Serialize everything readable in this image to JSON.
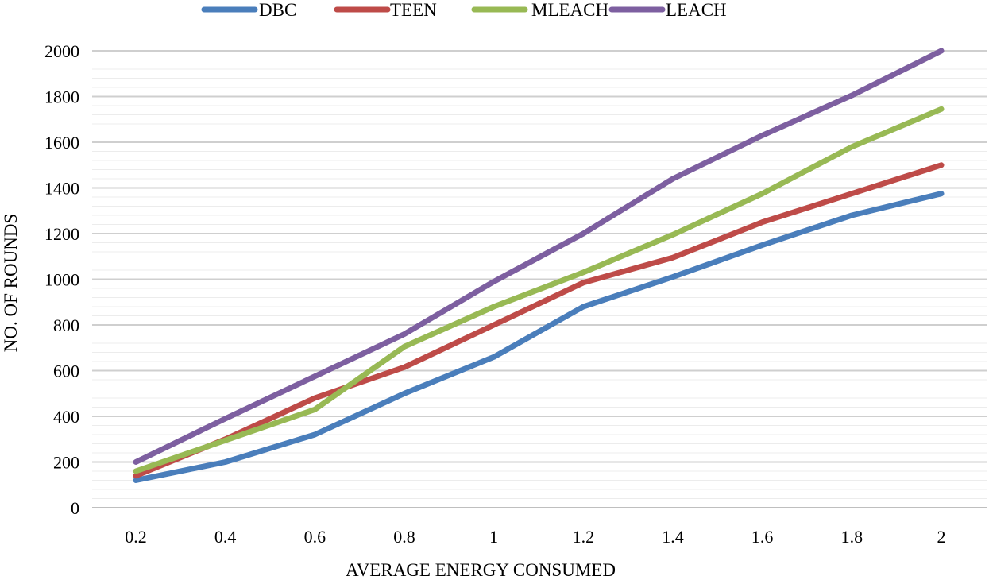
{
  "chart_data": {
    "type": "line",
    "title": "",
    "xlabel": "AVERAGE ENERGY CONSUMED",
    "ylabel": "NO. OF ROUNDS",
    "categories": [
      "0.2",
      "0.4",
      "0.6",
      "0.8",
      "1",
      "1.2",
      "1.4",
      "1.6",
      "1.8",
      "2"
    ],
    "ylim": [
      0,
      2000
    ],
    "y_ticks": [
      "0",
      "200",
      "400",
      "600",
      "800",
      "1000",
      "1200",
      "1400",
      "1600",
      "1800",
      "2000"
    ],
    "grid": true,
    "legend_position": "top",
    "series": [
      {
        "name": "DBC",
        "color": "#4a7ebb",
        "values": [
          120,
          200,
          320,
          500,
          660,
          880,
          1010,
          1150,
          1280,
          1375
        ]
      },
      {
        "name": "TEEN",
        "color": "#be4b48",
        "values": [
          140,
          300,
          480,
          615,
          800,
          985,
          1095,
          1250,
          1375,
          1500
        ]
      },
      {
        "name": "MLEACH",
        "color": "#98b954",
        "values": [
          160,
          295,
          430,
          705,
          880,
          1030,
          1195,
          1375,
          1580,
          1745
        ]
      },
      {
        "name": "LEACH",
        "color": "#7d5fa0",
        "values": [
          200,
          390,
          575,
          760,
          990,
          1200,
          1440,
          1630,
          1805,
          2000
        ]
      }
    ]
  }
}
